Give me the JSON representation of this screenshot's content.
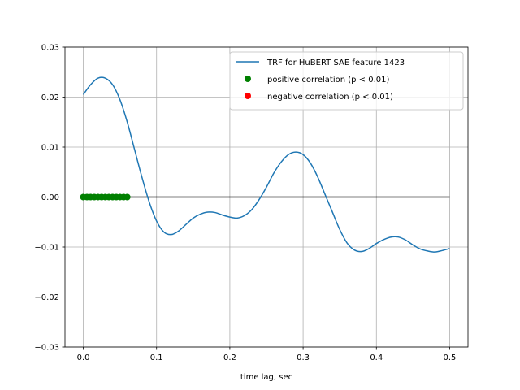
{
  "chart_data": {
    "type": "line",
    "title": "",
    "xlabel": "time lag, sec",
    "ylabel": "",
    "xlim": [
      -0.025,
      0.525
    ],
    "ylim": [
      -0.03,
      0.03
    ],
    "grid": true,
    "legend_position": "upper right",
    "x_ticks": [
      0.0,
      0.1,
      0.2,
      0.3,
      0.4,
      0.5
    ],
    "x_tick_labels": [
      "0.0",
      "0.1",
      "0.2",
      "0.3",
      "0.4",
      "0.5"
    ],
    "y_ticks": [
      -0.03,
      -0.02,
      -0.01,
      0.0,
      0.01,
      0.02,
      0.03
    ],
    "y_tick_labels": [
      "−0.03",
      "−0.02",
      "−0.01",
      "0.00",
      "0.01",
      "0.02",
      "0.03"
    ],
    "series": [
      {
        "name": "TRF for HuBERT SAE feature 1423",
        "kind": "line",
        "color": "#1f77b4",
        "x": [
          0.0,
          0.01,
          0.02,
          0.03,
          0.04,
          0.05,
          0.06,
          0.07,
          0.08,
          0.09,
          0.1,
          0.11,
          0.12,
          0.13,
          0.14,
          0.15,
          0.16,
          0.17,
          0.18,
          0.19,
          0.2,
          0.21,
          0.22,
          0.23,
          0.24,
          0.25,
          0.26,
          0.27,
          0.28,
          0.29,
          0.3,
          0.31,
          0.32,
          0.33,
          0.34,
          0.35,
          0.36,
          0.37,
          0.38,
          0.39,
          0.4,
          0.41,
          0.42,
          0.43,
          0.44,
          0.45,
          0.46,
          0.47,
          0.48,
          0.49,
          0.5
        ],
        "y": [
          0.0205,
          0.0225,
          0.0238,
          0.0238,
          0.0225,
          0.0195,
          0.015,
          0.0095,
          0.004,
          -0.001,
          -0.0048,
          -0.007,
          -0.0075,
          -0.0068,
          -0.0055,
          -0.0042,
          -0.0034,
          -0.003,
          -0.0031,
          -0.0036,
          -0.004,
          -0.0042,
          -0.0037,
          -0.0025,
          -0.0005,
          0.002,
          0.0048,
          0.007,
          0.0085,
          0.009,
          0.0085,
          0.0068,
          0.004,
          0.0005,
          -0.003,
          -0.0065,
          -0.0092,
          -0.0106,
          -0.0109,
          -0.0103,
          -0.0093,
          -0.0085,
          -0.008,
          -0.008,
          -0.0086,
          -0.0096,
          -0.0104,
          -0.0108,
          -0.011,
          -0.0107,
          -0.0103
        ]
      },
      {
        "name": "positive correlation (p < 0.01)",
        "kind": "scatter",
        "color": "#008000",
        "x": [
          0.0,
          0.005,
          0.01,
          0.015,
          0.02,
          0.025,
          0.03,
          0.035,
          0.04,
          0.045,
          0.05,
          0.055,
          0.06
        ],
        "y": [
          0,
          0,
          0,
          0,
          0,
          0,
          0,
          0,
          0,
          0,
          0,
          0,
          0
        ]
      },
      {
        "name": "negative correlation (p < 0.01)",
        "kind": "scatter",
        "color": "#ff0000",
        "x": [],
        "y": []
      },
      {
        "kind": "hline",
        "color": "#000000",
        "x": [
          0.0,
          0.5
        ],
        "y": [
          0.0,
          0.0
        ]
      }
    ]
  }
}
